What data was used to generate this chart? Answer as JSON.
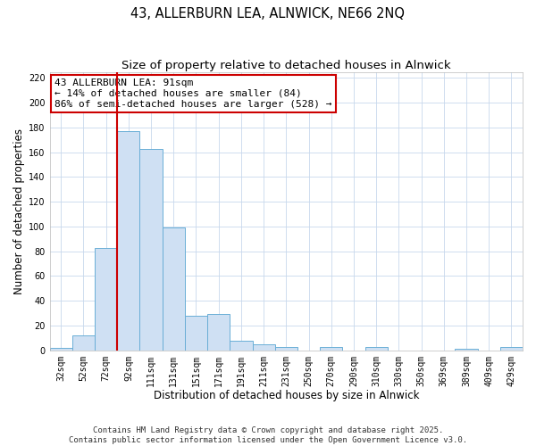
{
  "title": "43, ALLERBURN LEA, ALNWICK, NE66 2NQ",
  "subtitle": "Size of property relative to detached houses in Alnwick",
  "xlabel": "Distribution of detached houses by size in Alnwick",
  "ylabel": "Number of detached properties",
  "bar_labels": [
    "32sqm",
    "52sqm",
    "72sqm",
    "92sqm",
    "111sqm",
    "131sqm",
    "151sqm",
    "171sqm",
    "191sqm",
    "211sqm",
    "231sqm",
    "250sqm",
    "270sqm",
    "290sqm",
    "310sqm",
    "330sqm",
    "350sqm",
    "369sqm",
    "389sqm",
    "409sqm",
    "429sqm"
  ],
  "bar_values": [
    2,
    12,
    83,
    177,
    163,
    99,
    28,
    29,
    8,
    5,
    3,
    0,
    3,
    0,
    3,
    0,
    0,
    0,
    1,
    0,
    3
  ],
  "bar_color": "#cfe0f3",
  "bar_edge_color": "#6aaed6",
  "vline_index": 3,
  "vline_color": "#cc0000",
  "ylim": [
    0,
    225
  ],
  "yticks": [
    0,
    20,
    40,
    60,
    80,
    100,
    120,
    140,
    160,
    180,
    200,
    220
  ],
  "annotation_line1": "43 ALLERBURN LEA: 91sqm",
  "annotation_line2": "← 14% of detached houses are smaller (84)",
  "annotation_line3": "86% of semi-detached houses are larger (528) →",
  "footer_line1": "Contains HM Land Registry data © Crown copyright and database right 2025.",
  "footer_line2": "Contains public sector information licensed under the Open Government Licence v3.0.",
  "background_color": "#ffffff",
  "grid_color": "#c8d8ec",
  "title_fontsize": 10.5,
  "subtitle_fontsize": 9.5,
  "axis_label_fontsize": 8.5,
  "tick_label_fontsize": 7,
  "annotation_fontsize": 8,
  "footer_fontsize": 6.5
}
